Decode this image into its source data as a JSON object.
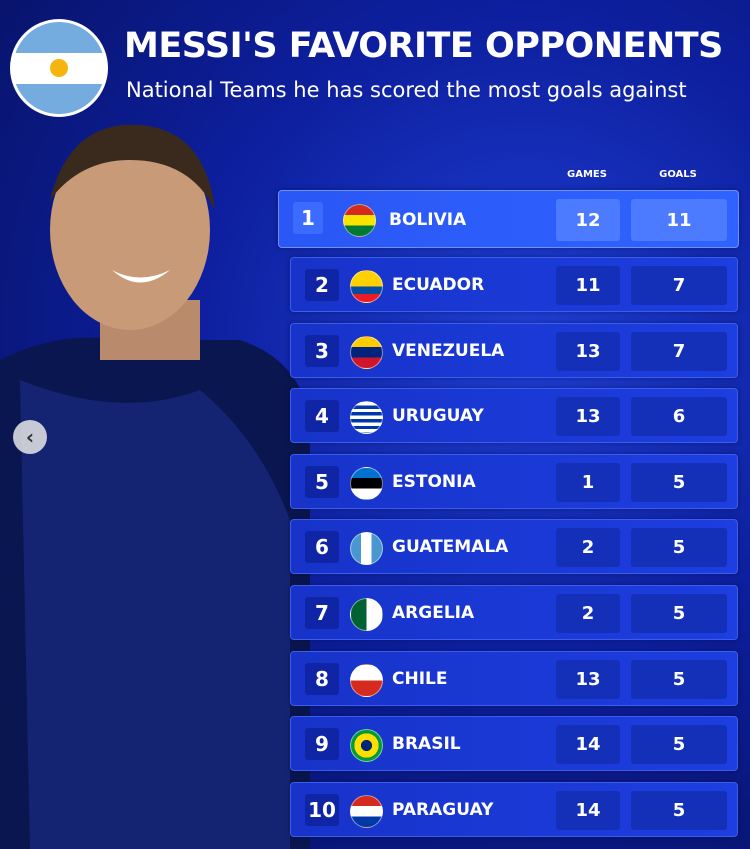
{
  "header": {
    "title": "MESSI'S FAVORITE OPPONENTS",
    "subtitle": "National Teams he has scored the most goals against"
  },
  "table": {
    "columns": [
      "GAMES",
      "GOALS"
    ],
    "rows": [
      [
        1,
        "BOLIVIA",
        12,
        11
      ],
      [
        2,
        "ECUADOR",
        11,
        7
      ],
      [
        3,
        "VENEZUELA",
        13,
        7
      ],
      [
        4,
        "URUGUAY",
        13,
        6
      ],
      [
        5,
        "ESTONIA",
        1,
        5
      ],
      [
        6,
        "GUATEMALA",
        2,
        5
      ],
      [
        7,
        "ARGELIA",
        2,
        5
      ],
      [
        8,
        "CHILE",
        13,
        5
      ],
      [
        9,
        "BRASIL",
        14,
        5
      ],
      [
        10,
        "PARAGUAY",
        14,
        5
      ]
    ]
  }
}
